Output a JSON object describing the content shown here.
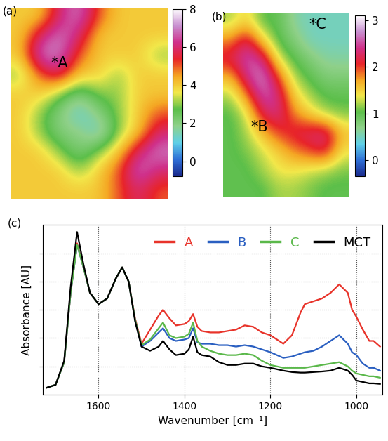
{
  "chart_data": [
    {
      "type": "heatmap",
      "panel_label": "(a)",
      "cells": [
        [
          4,
          4,
          6,
          7,
          5,
          4,
          4,
          4
        ],
        [
          4,
          6,
          7,
          6,
          4,
          4,
          4,
          4
        ],
        [
          4,
          7,
          7,
          5,
          4,
          4,
          4,
          3
        ],
        [
          3,
          5,
          6,
          4,
          4,
          3,
          4,
          4
        ],
        [
          4,
          4,
          3,
          2,
          3,
          3,
          4,
          4
        ],
        [
          4,
          3,
          2,
          1,
          2,
          3,
          4,
          5
        ],
        [
          4,
          3,
          2,
          2,
          1,
          3,
          4,
          6
        ],
        [
          4,
          4,
          3,
          2,
          3,
          4,
          6,
          7
        ],
        [
          4,
          4,
          4,
          3,
          4,
          5,
          7,
          6
        ],
        [
          4,
          4,
          4,
          4,
          4,
          5,
          6,
          5
        ]
      ],
      "clim": [
        -0.8,
        8
      ],
      "cticks": [
        0,
        2,
        4,
        6,
        8
      ],
      "annotations": [
        {
          "text": "*A"
        }
      ],
      "tick_labels": false
    },
    {
      "type": "heatmap",
      "panel_label": "(b)",
      "cells": [
        [
          1.2,
          1.5,
          1.0,
          1.0,
          0.6,
          0.5,
          0.5,
          0.5
        ],
        [
          1.8,
          2.3,
          1.5,
          1.0,
          0.8,
          0.5,
          0.5,
          0.5
        ],
        [
          2.2,
          2.6,
          2.4,
          1.3,
          1.0,
          0.8,
          0.6,
          0.6
        ],
        [
          1.6,
          2.4,
          2.8,
          2.0,
          1.2,
          1.0,
          0.8,
          0.8
        ],
        [
          1.2,
          1.8,
          2.6,
          2.4,
          1.5,
          1.2,
          1.0,
          1.0
        ],
        [
          1.0,
          1.3,
          2.2,
          2.4,
          1.8,
          1.5,
          1.2,
          1.1
        ],
        [
          1.0,
          1.2,
          1.6,
          2.0,
          2.2,
          2.3,
          2.4,
          1.6
        ],
        [
          1.0,
          1.1,
          1.3,
          1.5,
          1.8,
          2.0,
          2.2,
          1.4
        ],
        [
          1.0,
          1.0,
          1.2,
          1.4,
          1.4,
          1.3,
          1.2,
          1.1
        ],
        [
          1.0,
          1.0,
          1.0,
          1.2,
          1.2,
          1.1,
          1.0,
          1.0
        ]
      ],
      "clim": [
        -0.35,
        3.1
      ],
      "cticks": [
        0,
        1,
        2,
        3
      ],
      "annotations": [
        {
          "text": "*B"
        },
        {
          "text": "*C"
        }
      ],
      "tick_labels": false
    },
    {
      "type": "line",
      "panel_label": "(c)",
      "x_label": "Wavenumber [cm⁻¹]",
      "y_label": "Absorbance [AU]",
      "x": [
        1720,
        1700,
        1680,
        1665,
        1650,
        1635,
        1620,
        1600,
        1580,
        1560,
        1545,
        1530,
        1515,
        1500,
        1480,
        1460,
        1450,
        1435,
        1420,
        1400,
        1390,
        1380,
        1370,
        1360,
        1340,
        1320,
        1300,
        1280,
        1260,
        1240,
        1220,
        1200,
        1185,
        1170,
        1150,
        1130,
        1120,
        1100,
        1080,
        1060,
        1040,
        1020,
        1010,
        1000,
        985,
        970,
        960,
        945
      ],
      "series": [
        {
          "name": "A",
          "color": "#e8332a",
          "values": [
            0.25,
            0.35,
            1.15,
            3.6,
            5.35,
            4.5,
            3.6,
            3.2,
            3.4,
            4.1,
            4.5,
            4.0,
            2.7,
            1.8,
            2.3,
            2.8,
            3.0,
            2.7,
            2.45,
            2.5,
            2.6,
            2.85,
            2.4,
            2.25,
            2.2,
            2.2,
            2.25,
            2.3,
            2.45,
            2.4,
            2.2,
            2.1,
            1.95,
            1.8,
            2.1,
            2.9,
            3.2,
            3.3,
            3.4,
            3.6,
            3.9,
            3.6,
            3.0,
            2.75,
            2.3,
            1.9,
            1.9,
            1.7
          ]
        },
        {
          "name": "B",
          "color": "#2a5fc1",
          "values": [
            0.25,
            0.35,
            1.15,
            3.6,
            5.3,
            4.5,
            3.6,
            3.2,
            3.4,
            4.1,
            4.5,
            4.0,
            2.65,
            1.7,
            1.9,
            2.2,
            2.35,
            2.0,
            1.9,
            1.95,
            2.0,
            2.35,
            1.85,
            1.8,
            1.8,
            1.75,
            1.75,
            1.7,
            1.75,
            1.7,
            1.6,
            1.5,
            1.4,
            1.3,
            1.35,
            1.45,
            1.5,
            1.55,
            1.7,
            1.9,
            2.1,
            1.8,
            1.5,
            1.4,
            1.1,
            0.95,
            0.95,
            0.85
          ]
        },
        {
          "name": "C",
          "color": "#5ab84a",
          "values": [
            0.25,
            0.35,
            1.15,
            3.6,
            5.3,
            4.5,
            3.6,
            3.2,
            3.4,
            4.1,
            4.5,
            4.0,
            2.65,
            1.75,
            1.95,
            2.35,
            2.55,
            2.1,
            2.0,
            2.05,
            2.15,
            2.55,
            1.9,
            1.7,
            1.55,
            1.45,
            1.4,
            1.4,
            1.45,
            1.4,
            1.2,
            1.05,
            1.0,
            0.95,
            0.95,
            0.95,
            0.95,
            1.0,
            1.05,
            1.1,
            1.15,
            1.0,
            0.85,
            0.75,
            0.7,
            0.65,
            0.65,
            0.6
          ]
        },
        {
          "name": "MCT",
          "color": "#000000",
          "values": [
            0.25,
            0.35,
            1.2,
            3.8,
            5.75,
            4.6,
            3.6,
            3.2,
            3.4,
            4.1,
            4.5,
            4.0,
            2.6,
            1.7,
            1.55,
            1.7,
            1.9,
            1.6,
            1.4,
            1.45,
            1.6,
            2.05,
            1.5,
            1.4,
            1.35,
            1.15,
            1.05,
            1.05,
            1.1,
            1.1,
            1.0,
            0.95,
            0.9,
            0.85,
            0.8,
            0.78,
            0.78,
            0.8,
            0.82,
            0.85,
            0.95,
            0.85,
            0.7,
            0.5,
            0.45,
            0.4,
            0.4,
            0.38
          ]
        }
      ],
      "xlim": [
        1730,
        940
      ],
      "xticks": [
        1600,
        1400,
        1200,
        1000
      ],
      "ylim": [
        0,
        6
      ],
      "yticks": [
        1,
        2,
        3,
        4,
        5
      ],
      "grid": true,
      "legend": "upper right",
      "tick_labels": "x"
    }
  ]
}
